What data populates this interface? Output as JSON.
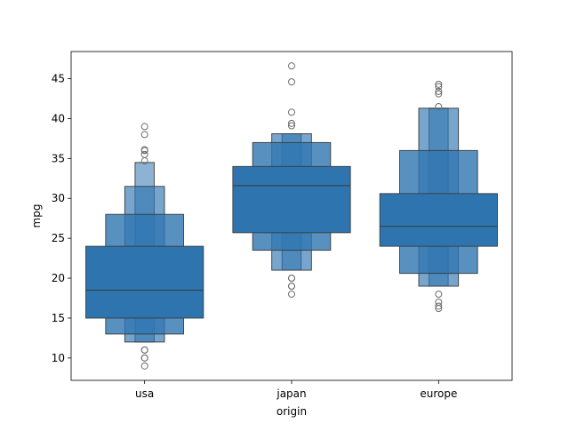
{
  "chart_data": {
    "type": "boxen",
    "xlabel": "origin",
    "ylabel": "mpg",
    "categories": [
      "usa",
      "japan",
      "europe"
    ],
    "ylim": [
      7.2,
      48.4
    ],
    "yticks": [
      10,
      15,
      20,
      25,
      30,
      35,
      40,
      45
    ],
    "color": "#2e75b0",
    "edge_color": "#3a3a3a",
    "grid": false,
    "groups": [
      {
        "name": "usa",
        "median": 18.5,
        "boxes": [
          {
            "level": 0,
            "low": 15.0,
            "high": 24.0
          },
          {
            "level": 1,
            "low": 13.0,
            "high": 28.0
          },
          {
            "level": 2,
            "low": 12.0,
            "high": 31.5
          },
          {
            "level": 3,
            "low": 12.0,
            "high": 34.5
          }
        ],
        "outliers": [
          9.0,
          10.0,
          10.0,
          11.0,
          11.0,
          34.7,
          35.5,
          36.0,
          36.1,
          38.0,
          39.0
        ]
      },
      {
        "name": "japan",
        "median": 31.6,
        "boxes": [
          {
            "level": 0,
            "low": 25.7,
            "high": 34.0
          },
          {
            "level": 1,
            "low": 23.5,
            "high": 37.0
          },
          {
            "level": 2,
            "low": 21.0,
            "high": 38.1
          },
          {
            "level": 3,
            "low": 21.0,
            "high": 38.1
          }
        ],
        "outliers": [
          18.0,
          19.0,
          19.0,
          20.0,
          20.0,
          39.1,
          39.4,
          40.8,
          44.6,
          46.6
        ]
      },
      {
        "name": "europe",
        "median": 26.5,
        "boxes": [
          {
            "level": 0,
            "low": 24.0,
            "high": 30.6
          },
          {
            "level": 1,
            "low": 20.6,
            "high": 36.0
          },
          {
            "level": 2,
            "low": 19.0,
            "high": 41.3
          },
          {
            "level": 3,
            "low": 19.0,
            "high": 41.3
          }
        ],
        "outliers": [
          16.2,
          16.5,
          17.0,
          18.0,
          41.5,
          43.1,
          43.4,
          44.0,
          44.3
        ]
      }
    ]
  }
}
